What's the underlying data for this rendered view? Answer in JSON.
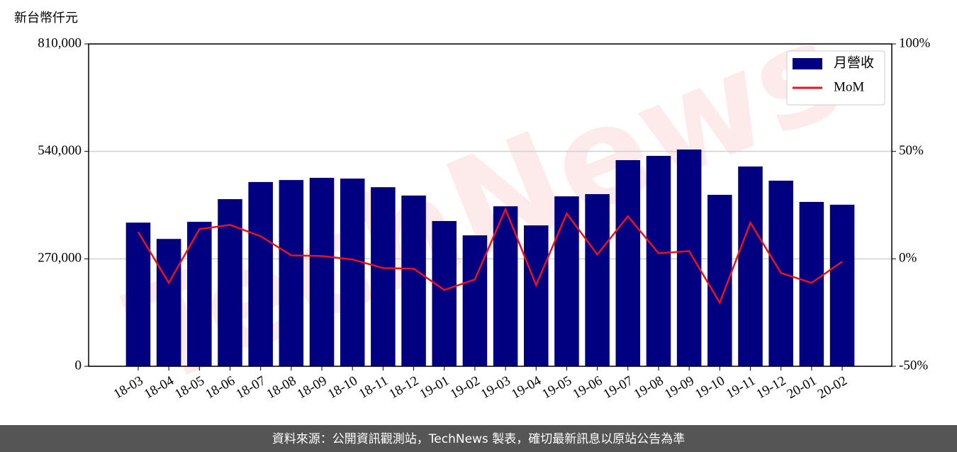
{
  "chart_data": {
    "type": "bar",
    "y_axis_label": "新台幣仟元",
    "watermark": "TechNews",
    "footer": "資料來源：公開資訊觀測站，TechNews 製表，確切最新訊息以原站公告為準",
    "categories": [
      "18-03",
      "18-04",
      "18-05",
      "18-06",
      "18-07",
      "18-08",
      "18-09",
      "18-10",
      "18-11",
      "18-12",
      "19-01",
      "19-02",
      "19-03",
      "19-04",
      "19-05",
      "19-06",
      "19-07",
      "19-08",
      "19-09",
      "19-10",
      "19-11",
      "19-12",
      "20-01",
      "20-02"
    ],
    "series": [
      {
        "name": "月營收",
        "type": "bar",
        "color": "#000080",
        "values": [
          361000,
          320000,
          363000,
          420000,
          463000,
          468000,
          473500,
          471700,
          450000,
          429000,
          365000,
          329000,
          402000,
          354000,
          427000,
          432600,
          518000,
          528700,
          544700,
          430800,
          502000,
          466400,
          413000,
          406000
        ]
      },
      {
        "name": "MoM",
        "type": "line",
        "axis": "y2",
        "color": "#e8141c",
        "values": [
          12.5,
          -11.2,
          13.8,
          15.8,
          10.5,
          1.6,
          1.3,
          -0.3,
          -4.3,
          -4.6,
          -14.5,
          -9.6,
          23.1,
          -12.2,
          21.1,
          2.0,
          19.8,
          2.6,
          3.6,
          -20.4,
          16.8,
          -6.6,
          -11.2,
          -1.3
        ]
      }
    ],
    "ylim": [
      0,
      810000
    ],
    "yticks": [
      0,
      {
        "value": 270000,
        "label": "270,000"
      },
      {
        "value": 540000,
        "label": "540,000"
      },
      {
        "value": 810000,
        "label": "810,000"
      }
    ],
    "y2lim": [
      -50,
      100
    ],
    "y2ticks": [
      {
        "value": -50,
        "label": "-50%"
      },
      {
        "value": 0,
        "label": "0%"
      },
      {
        "value": 50,
        "label": "50%"
      },
      {
        "value": 100,
        "label": "100%"
      }
    ],
    "grid": true,
    "legend": "upper right"
  }
}
